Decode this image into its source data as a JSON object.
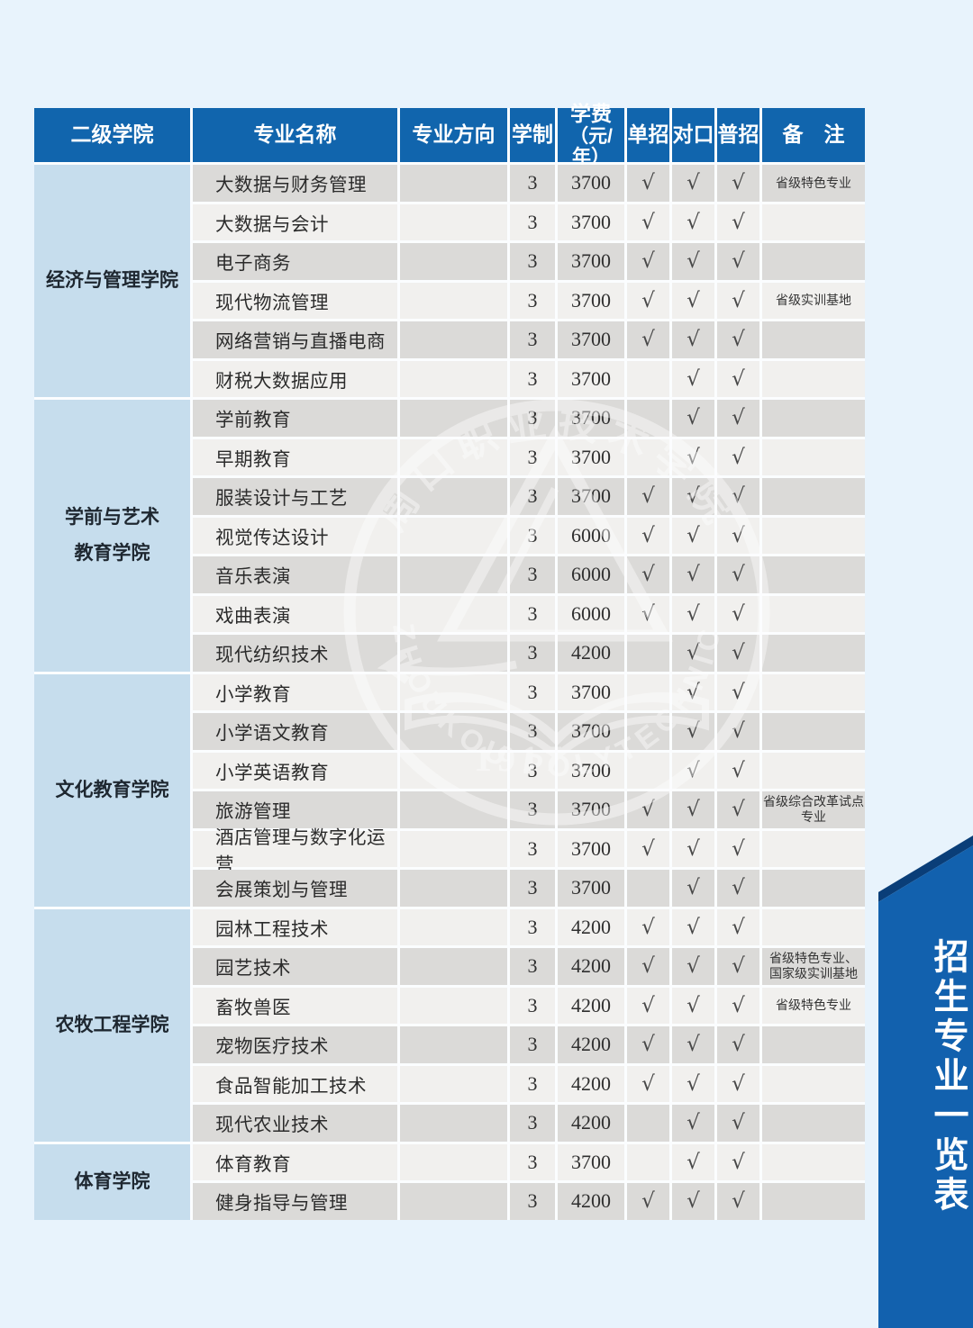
{
  "colors": {
    "page_bg": "#e8f3fc",
    "header_bg": "#1165ad",
    "college_bg": "#c6dded",
    "row_gray": "#dbdad8",
    "row_light": "#f1f0ee",
    "ribbon_blue": "#1261ae",
    "ribbon_fold": "#0a3e78",
    "check_color": "#474747"
  },
  "table": {
    "header": {
      "college": "二级学院",
      "major": "专业名称",
      "direction": "专业方向",
      "duration": "学制",
      "tuition_line1": "学费",
      "tuition_line2": "（元/年）",
      "danzhao": "单招",
      "duikou": "对口",
      "puzhao": "普招",
      "remark": "备　注"
    },
    "check_glyph": "√",
    "groups": [
      {
        "college_lines": [
          "经济与管理学院"
        ],
        "rows": [
          {
            "major": "大数据与财务管理",
            "direction": "",
            "duration": "3",
            "tuition": "3700",
            "checks": [
              true,
              true,
              true
            ],
            "remark": "省级特色专业"
          },
          {
            "major": "大数据与会计",
            "direction": "",
            "duration": "3",
            "tuition": "3700",
            "checks": [
              true,
              true,
              true
            ],
            "remark": ""
          },
          {
            "major": "电子商务",
            "direction": "",
            "duration": "3",
            "tuition": "3700",
            "checks": [
              true,
              true,
              true
            ],
            "remark": ""
          },
          {
            "major": "现代物流管理",
            "direction": "",
            "duration": "3",
            "tuition": "3700",
            "checks": [
              true,
              true,
              true
            ],
            "remark": "省级实训基地"
          },
          {
            "major": "网络营销与直播电商",
            "direction": "",
            "duration": "3",
            "tuition": "3700",
            "checks": [
              true,
              true,
              true
            ],
            "remark": ""
          },
          {
            "major": "财税大数据应用",
            "direction": "",
            "duration": "3",
            "tuition": "3700",
            "checks": [
              false,
              true,
              true
            ],
            "remark": ""
          }
        ]
      },
      {
        "college_lines": [
          "学前与艺术",
          "教育学院"
        ],
        "rows": [
          {
            "major": "学前教育",
            "direction": "",
            "duration": "3",
            "tuition": "3700",
            "checks": [
              false,
              true,
              true
            ],
            "remark": ""
          },
          {
            "major": "早期教育",
            "direction": "",
            "duration": "3",
            "tuition": "3700",
            "checks": [
              false,
              true,
              true
            ],
            "remark": ""
          },
          {
            "major": "服装设计与工艺",
            "direction": "",
            "duration": "3",
            "tuition": "3700",
            "checks": [
              true,
              true,
              true
            ],
            "remark": ""
          },
          {
            "major": "视觉传达设计",
            "direction": "",
            "duration": "3",
            "tuition": "6000",
            "checks": [
              true,
              true,
              true
            ],
            "remark": ""
          },
          {
            "major": "音乐表演",
            "direction": "",
            "duration": "3",
            "tuition": "6000",
            "checks": [
              true,
              true,
              true
            ],
            "remark": ""
          },
          {
            "major": "戏曲表演",
            "direction": "",
            "duration": "3",
            "tuition": "6000",
            "checks": [
              true,
              true,
              true
            ],
            "remark": ""
          },
          {
            "major": "现代纺织技术",
            "direction": "",
            "duration": "3",
            "tuition": "4200",
            "checks": [
              false,
              true,
              true
            ],
            "remark": ""
          }
        ]
      },
      {
        "college_lines": [
          "文化教育学院"
        ],
        "rows": [
          {
            "major": "小学教育",
            "direction": "",
            "duration": "3",
            "tuition": "3700",
            "checks": [
              false,
              true,
              true
            ],
            "remark": ""
          },
          {
            "major": "小学语文教育",
            "direction": "",
            "duration": "3",
            "tuition": "3700",
            "checks": [
              false,
              true,
              true
            ],
            "remark": ""
          },
          {
            "major": "小学英语教育",
            "direction": "",
            "duration": "3",
            "tuition": "3700",
            "checks": [
              false,
              true,
              true
            ],
            "remark": ""
          },
          {
            "major": "旅游管理",
            "direction": "",
            "duration": "3",
            "tuition": "3700",
            "checks": [
              true,
              true,
              true
            ],
            "remark": "省级综合改革试点专业"
          },
          {
            "major": "酒店管理与数字化运营",
            "direction": "",
            "duration": "3",
            "tuition": "3700",
            "checks": [
              true,
              true,
              true
            ],
            "remark": ""
          },
          {
            "major": "会展策划与管理",
            "direction": "",
            "duration": "3",
            "tuition": "3700",
            "checks": [
              false,
              true,
              true
            ],
            "remark": ""
          }
        ]
      },
      {
        "college_lines": [
          "农牧工程学院"
        ],
        "rows": [
          {
            "major": "园林工程技术",
            "direction": "",
            "duration": "3",
            "tuition": "4200",
            "checks": [
              true,
              true,
              true
            ],
            "remark": ""
          },
          {
            "major": "园艺技术",
            "direction": "",
            "duration": "3",
            "tuition": "4200",
            "checks": [
              true,
              true,
              true
            ],
            "remark": "省级特色专业、\n国家级实训基地"
          },
          {
            "major": "畜牧兽医",
            "direction": "",
            "duration": "3",
            "tuition": "4200",
            "checks": [
              true,
              true,
              true
            ],
            "remark": "省级特色专业"
          },
          {
            "major": "宠物医疗技术",
            "direction": "",
            "duration": "3",
            "tuition": "4200",
            "checks": [
              true,
              true,
              true
            ],
            "remark": ""
          },
          {
            "major": "食品智能加工技术",
            "direction": "",
            "duration": "3",
            "tuition": "4200",
            "checks": [
              true,
              true,
              true
            ],
            "remark": ""
          },
          {
            "major": "现代农业技术",
            "direction": "",
            "duration": "3",
            "tuition": "4200",
            "checks": [
              false,
              true,
              true
            ],
            "remark": ""
          }
        ]
      },
      {
        "college_lines": [
          "体育学院"
        ],
        "rows": [
          {
            "major": "体育教育",
            "direction": "",
            "duration": "3",
            "tuition": "3700",
            "checks": [
              false,
              true,
              true
            ],
            "remark": ""
          },
          {
            "major": "健身指导与管理",
            "direction": "",
            "duration": "3",
            "tuition": "4200",
            "checks": [
              true,
              true,
              true
            ],
            "remark": ""
          }
        ]
      }
    ]
  },
  "ribbon": {
    "label": "招生专业一览表"
  },
  "watermark": {
    "school_cn": "周口职业技术学院",
    "school_en": "ZHOUKOU  POLYTECHNIC",
    "year": "1917"
  }
}
